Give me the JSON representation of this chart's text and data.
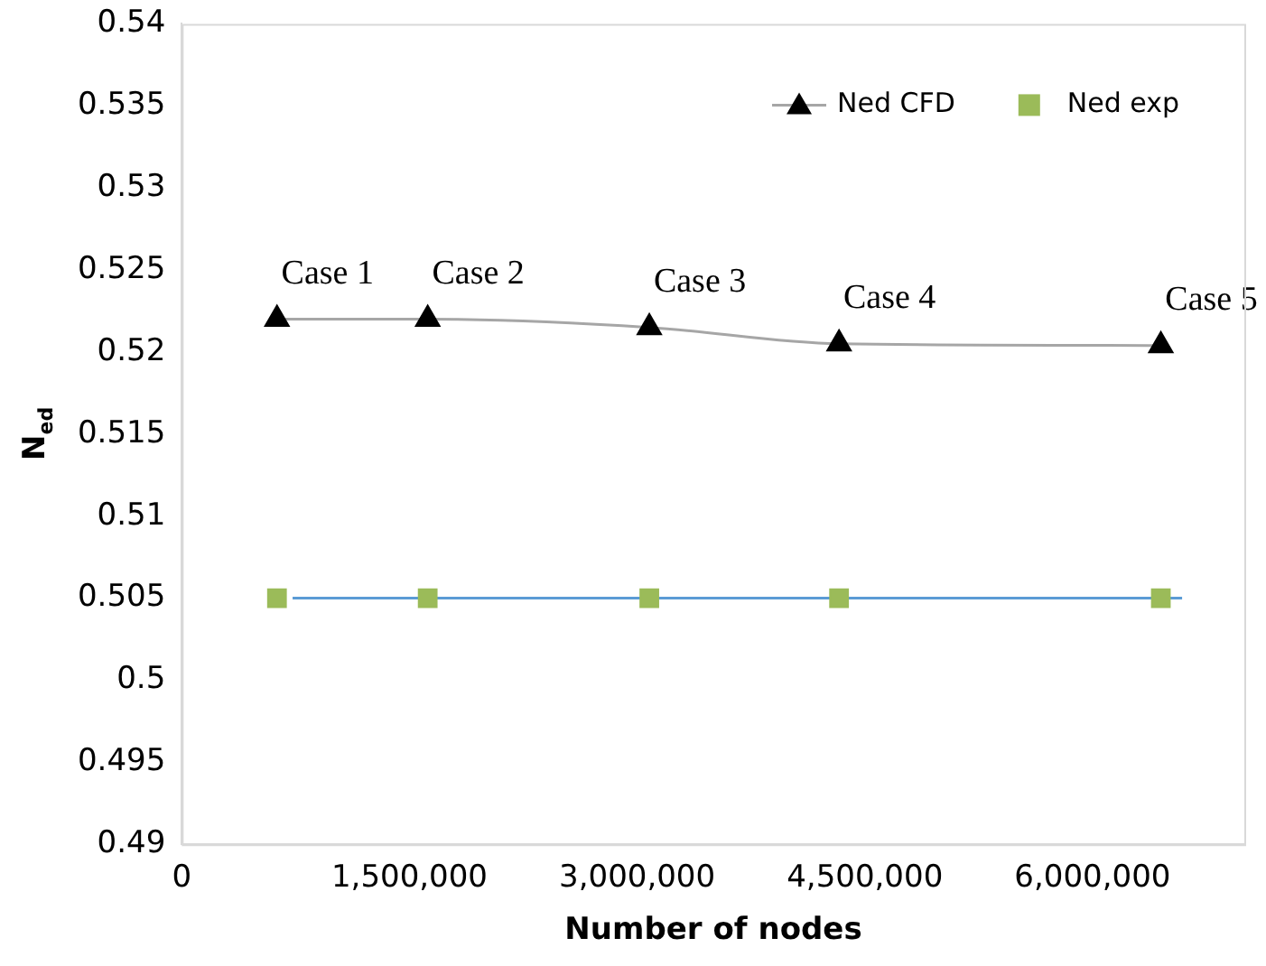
{
  "chart_data": {
    "type": "line",
    "xlabel": "Number of nodes",
    "ylabel": "N$_{ed}$",
    "xlim": [
      0,
      7000000
    ],
    "xticks": [
      {
        "value": 0,
        "label": "0"
      },
      {
        "value": 1500000,
        "label": "1,500,000"
      },
      {
        "value": 3000000,
        "label": "3,000,000"
      },
      {
        "value": 4500000,
        "label": "4,500,000"
      },
      {
        "value": 6000000,
        "label": "6,000,000"
      }
    ],
    "ylim": [
      0.49,
      0.54
    ],
    "yticks": [
      0.49,
      0.495,
      0.5,
      0.505,
      0.51,
      0.515,
      0.52,
      0.525,
      0.53,
      0.535,
      0.54
    ],
    "grid": false,
    "legend": "top right",
    "series": [
      {
        "name": "Ned CFD",
        "color": "#000000",
        "marker": "triangle",
        "x": [
          627000,
          1620000,
          3080000,
          4330000,
          6450000
        ],
        "values": [
          0.522,
          0.522,
          0.5215,
          0.5205,
          0.5204
        ]
      },
      {
        "name": "Ned exp",
        "type": "scatter",
        "color": "#9bbb59",
        "marker": "square",
        "x": [
          627000,
          1620000,
          3080000,
          4330000,
          6450000
        ],
        "values": [
          0.505,
          0.505,
          0.505,
          0.505,
          0.505
        ]
      },
      {
        "color": "#5b9bd5",
        "marker": "none",
        "x": [
          730000,
          6590000
        ],
        "values": [
          0.505,
          0.505
        ]
      }
    ],
    "annotations": [
      {
        "text": "Case 1",
        "x": 627000,
        "y": 0.522
      },
      {
        "text": "Case 2",
        "x": 1620000,
        "y": 0.522
      },
      {
        "text": "Case 3",
        "x": 3080000,
        "y": 0.5215
      },
      {
        "text": "Case 4",
        "x": 4330000,
        "y": 0.5205
      },
      {
        "text": "Case 5",
        "x": 6450000,
        "y": 0.5204
      }
    ]
  }
}
